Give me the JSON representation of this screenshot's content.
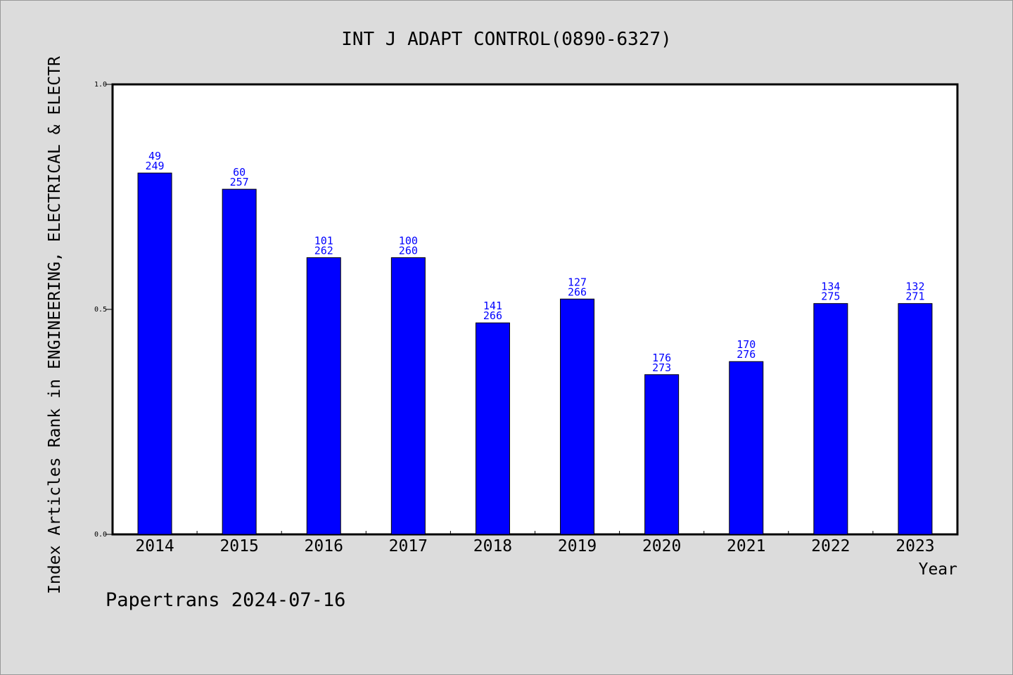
{
  "chart_data": {
    "type": "bar",
    "title": "INT J ADAPT CONTROL(0890-6327)",
    "xlabel": "Year",
    "ylabel": "Index Articles Rank in ENGINEERING, ELECTRICAL & ELECTR",
    "ylim": [
      0,
      1.0
    ],
    "yticks": [
      "0.0",
      "0.5",
      "1.0"
    ],
    "categories": [
      "2014",
      "2015",
      "2016",
      "2017",
      "2018",
      "2019",
      "2020",
      "2021",
      "2022",
      "2023"
    ],
    "values": [
      0.803,
      0.767,
      0.615,
      0.615,
      0.47,
      0.523,
      0.355,
      0.384,
      0.513,
      0.513
    ],
    "rank": [
      "49",
      "60",
      "101",
      "100",
      "141",
      "127",
      "176",
      "170",
      "134",
      "132"
    ],
    "total": [
      "249",
      "257",
      "262",
      "260",
      "266",
      "266",
      "273",
      "276",
      "275",
      "271"
    ],
    "bar_color": "#0000ff",
    "grid": false,
    "legend": "none"
  },
  "footer": "Papertrans 2024-07-16",
  "colors": {
    "background": "#dcdcdc",
    "plot_area": "#ffffff",
    "label_text": "#0000ff"
  }
}
